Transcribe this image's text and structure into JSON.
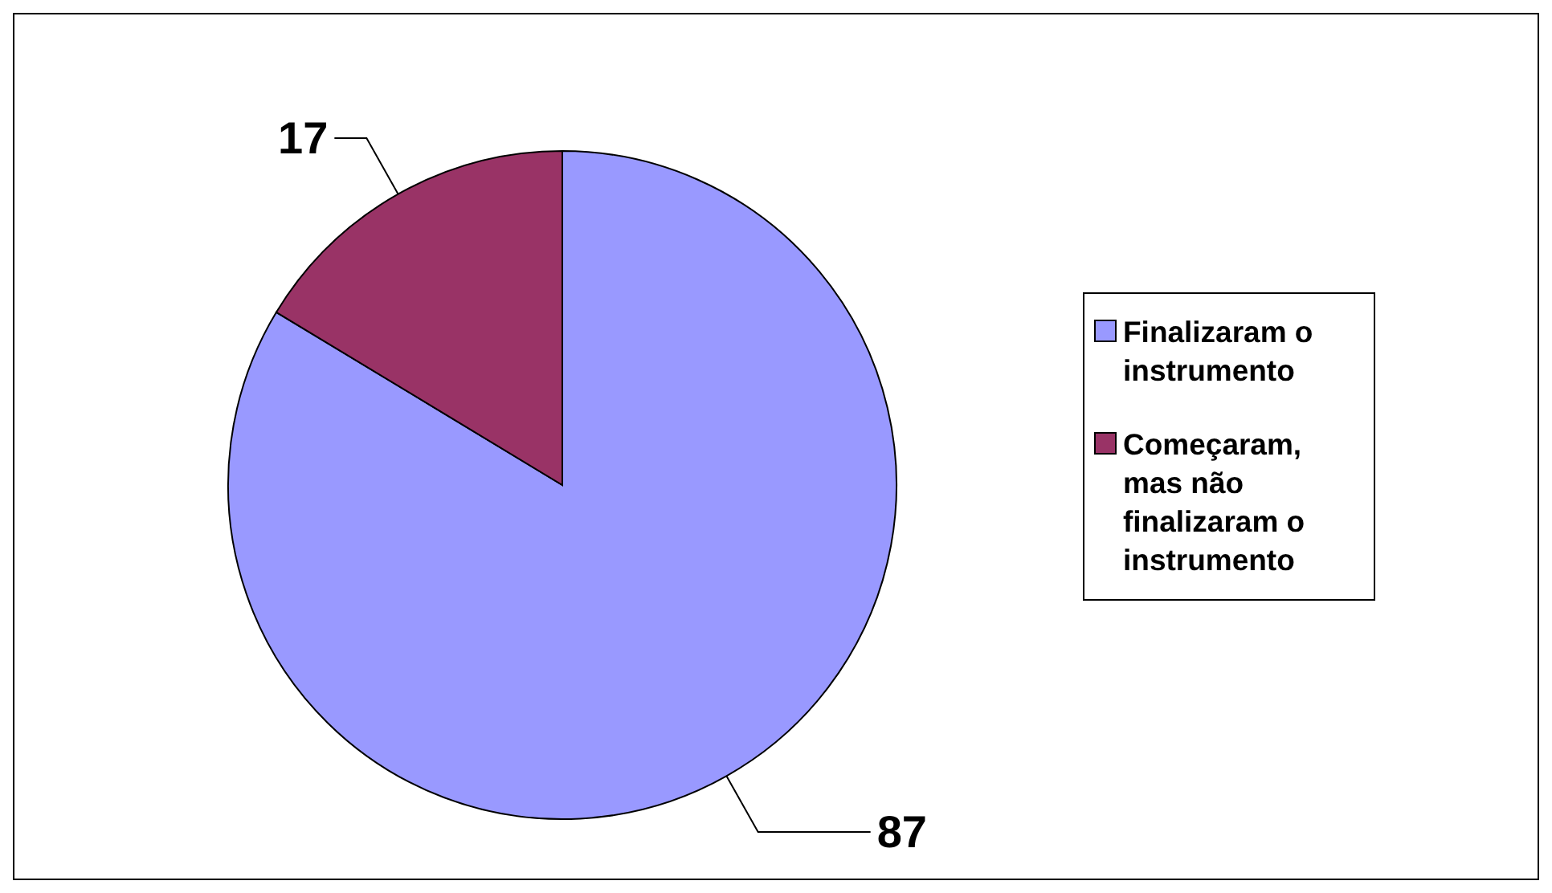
{
  "chart_data": {
    "type": "pie",
    "categories": [
      "Finalizaram o instrumento",
      "Começaram, mas não finalizaram o instrumento"
    ],
    "values": [
      87,
      17
    ],
    "colors": [
      "#9999ff",
      "#993366"
    ],
    "data_labels": true,
    "legend": "right"
  }
}
